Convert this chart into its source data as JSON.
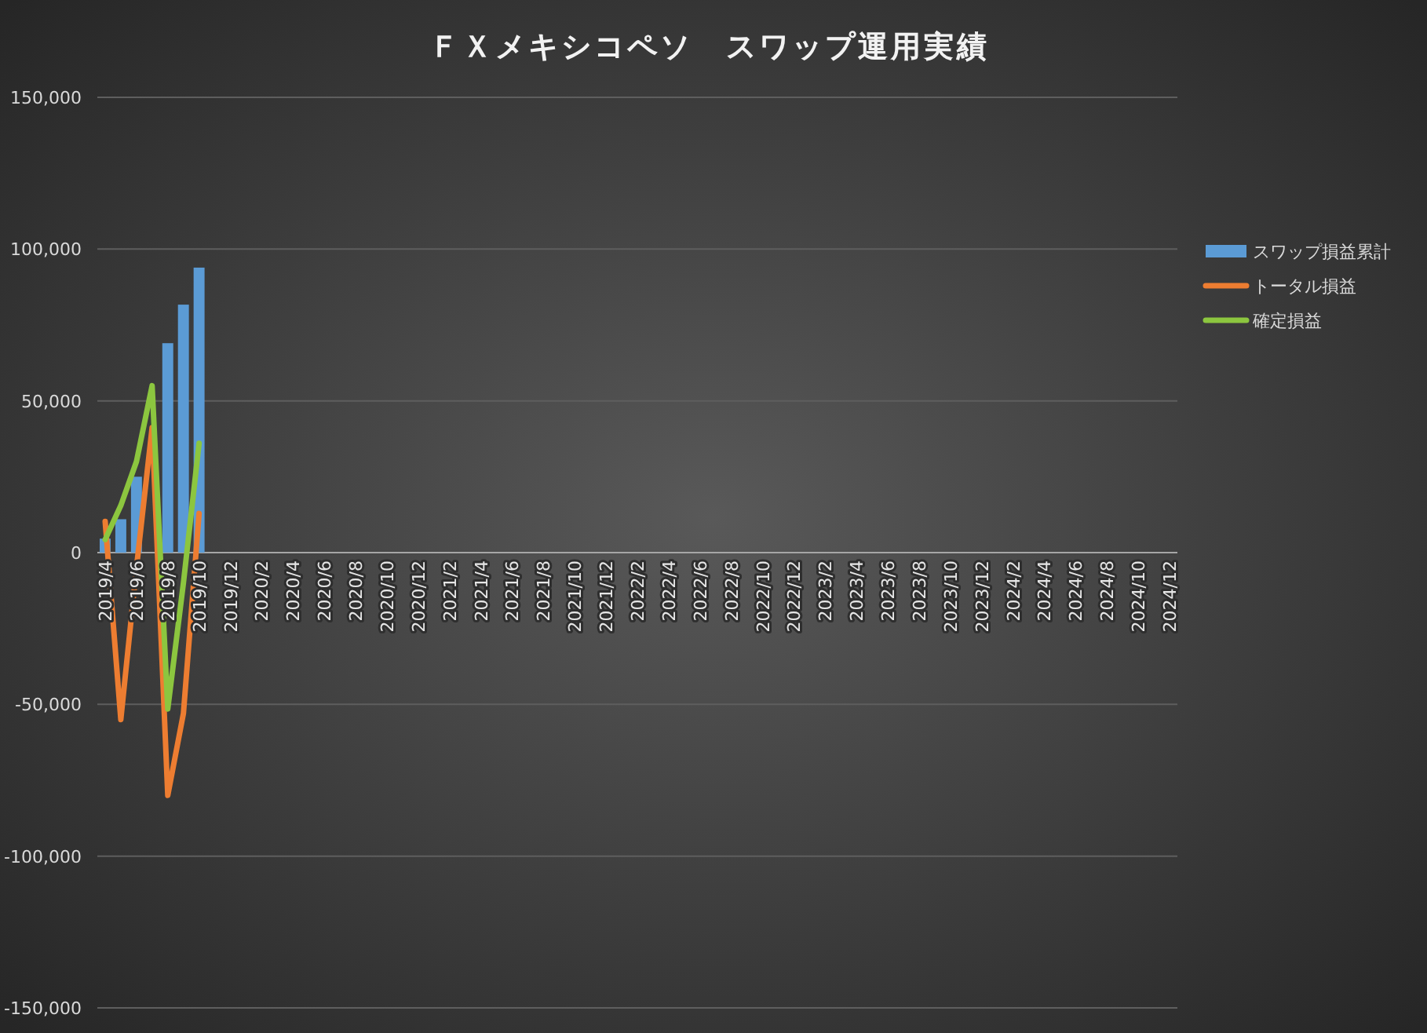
{
  "chart_data": {
    "type": "bar",
    "title": "ＦＸメキシコペソ　スワップ運用実績",
    "categories": [
      "2019/4",
      null,
      "2019/6",
      null,
      "2019/8",
      null,
      "2019/10",
      null,
      "2019/12",
      null,
      "2020/2",
      null,
      "2020/4",
      null,
      "2020/6",
      null,
      "2020/8",
      null,
      "2020/10",
      null,
      "2020/12",
      null,
      "2021/2",
      null,
      "2021/4",
      null,
      "2021/6",
      null,
      "2021/8",
      null,
      "2021/10",
      null,
      "2021/12",
      null,
      "2022/2",
      null,
      "2022/4",
      null,
      "2022/6",
      null,
      "2022/8",
      null,
      "2022/10",
      null,
      "2022/12",
      null,
      "2023/2",
      null,
      "2023/4",
      null,
      "2023/6",
      null,
      "2023/8",
      null,
      "2023/10",
      null,
      "2023/12",
      null,
      "2024/2",
      null,
      "2024/4",
      null,
      "2024/6",
      null,
      "2024/8",
      null,
      "2024/10",
      null,
      "2024/12"
    ],
    "series": [
      {
        "name": "スワップ損益累計",
        "color": "#5b9bd5",
        "values": [
          4600,
          11000,
          25000,
          null,
          69000,
          81700,
          93900,
          null,
          null,
          null,
          null,
          null,
          null,
          null,
          null,
          null,
          null,
          null,
          null,
          null,
          null,
          null,
          null,
          null,
          null,
          null,
          null,
          null,
          null,
          null,
          null,
          null,
          null,
          null,
          null,
          null,
          null,
          null,
          null,
          null,
          null,
          null,
          null,
          null,
          null,
          null,
          null,
          null,
          null,
          null,
          null,
          null,
          null,
          null,
          null,
          null,
          null,
          null,
          null,
          null,
          null,
          null,
          null,
          null,
          null,
          null,
          null,
          null,
          null
        ]
      },
      {
        "name": "トータル損益",
        "type": "line",
        "color": "#ed7d31",
        "values": [
          10300,
          -55000,
          -5000,
          41200,
          -80000,
          -53000,
          12900,
          null,
          null,
          null,
          null,
          null,
          null,
          null,
          null,
          null,
          null,
          null,
          null,
          null,
          null,
          null,
          null,
          null,
          null,
          null,
          null,
          null,
          null,
          null,
          null,
          null,
          null,
          null,
          null,
          null,
          null,
          null,
          null,
          null,
          null,
          null,
          null,
          null,
          null,
          null,
          null,
          null,
          null,
          null,
          null,
          null,
          null,
          null,
          null,
          null,
          null,
          null,
          null,
          null,
          null,
          null,
          null,
          null,
          null,
          null,
          null,
          null,
          null
        ]
      },
      {
        "name": "確定損益",
        "type": "line",
        "color": "#8cc63f",
        "values": [
          4300,
          15500,
          30000,
          55000,
          -51500,
          -10000,
          36000,
          null,
          null,
          null,
          null,
          null,
          null,
          null,
          null,
          null,
          null,
          null,
          null,
          null,
          null,
          null,
          null,
          null,
          null,
          null,
          null,
          null,
          null,
          null,
          null,
          null,
          null,
          null,
          null,
          null,
          null,
          null,
          null,
          null,
          null,
          null,
          null,
          null,
          null,
          null,
          null,
          null,
          null,
          null,
          null,
          null,
          null,
          null,
          null,
          null,
          null,
          null,
          null,
          null,
          null,
          null,
          null,
          null,
          null,
          null,
          null,
          null,
          null
        ]
      }
    ],
    "ylim": [
      -150000,
      150000
    ],
    "yticks": [
      {
        "value": -150000,
        "label": "-150,000"
      },
      {
        "value": -100000,
        "label": "-100,000"
      },
      {
        "value": -50000,
        "label": "-50,000"
      },
      {
        "value": 0,
        "label": "0"
      },
      {
        "value": 50000,
        "label": "50,000"
      },
      {
        "value": 100000,
        "label": "100,000"
      },
      {
        "value": 150000,
        "label": "150,000"
      }
    ],
    "grid": "y",
    "legend": "right",
    "marker": "none",
    "line_style": "solid"
  }
}
